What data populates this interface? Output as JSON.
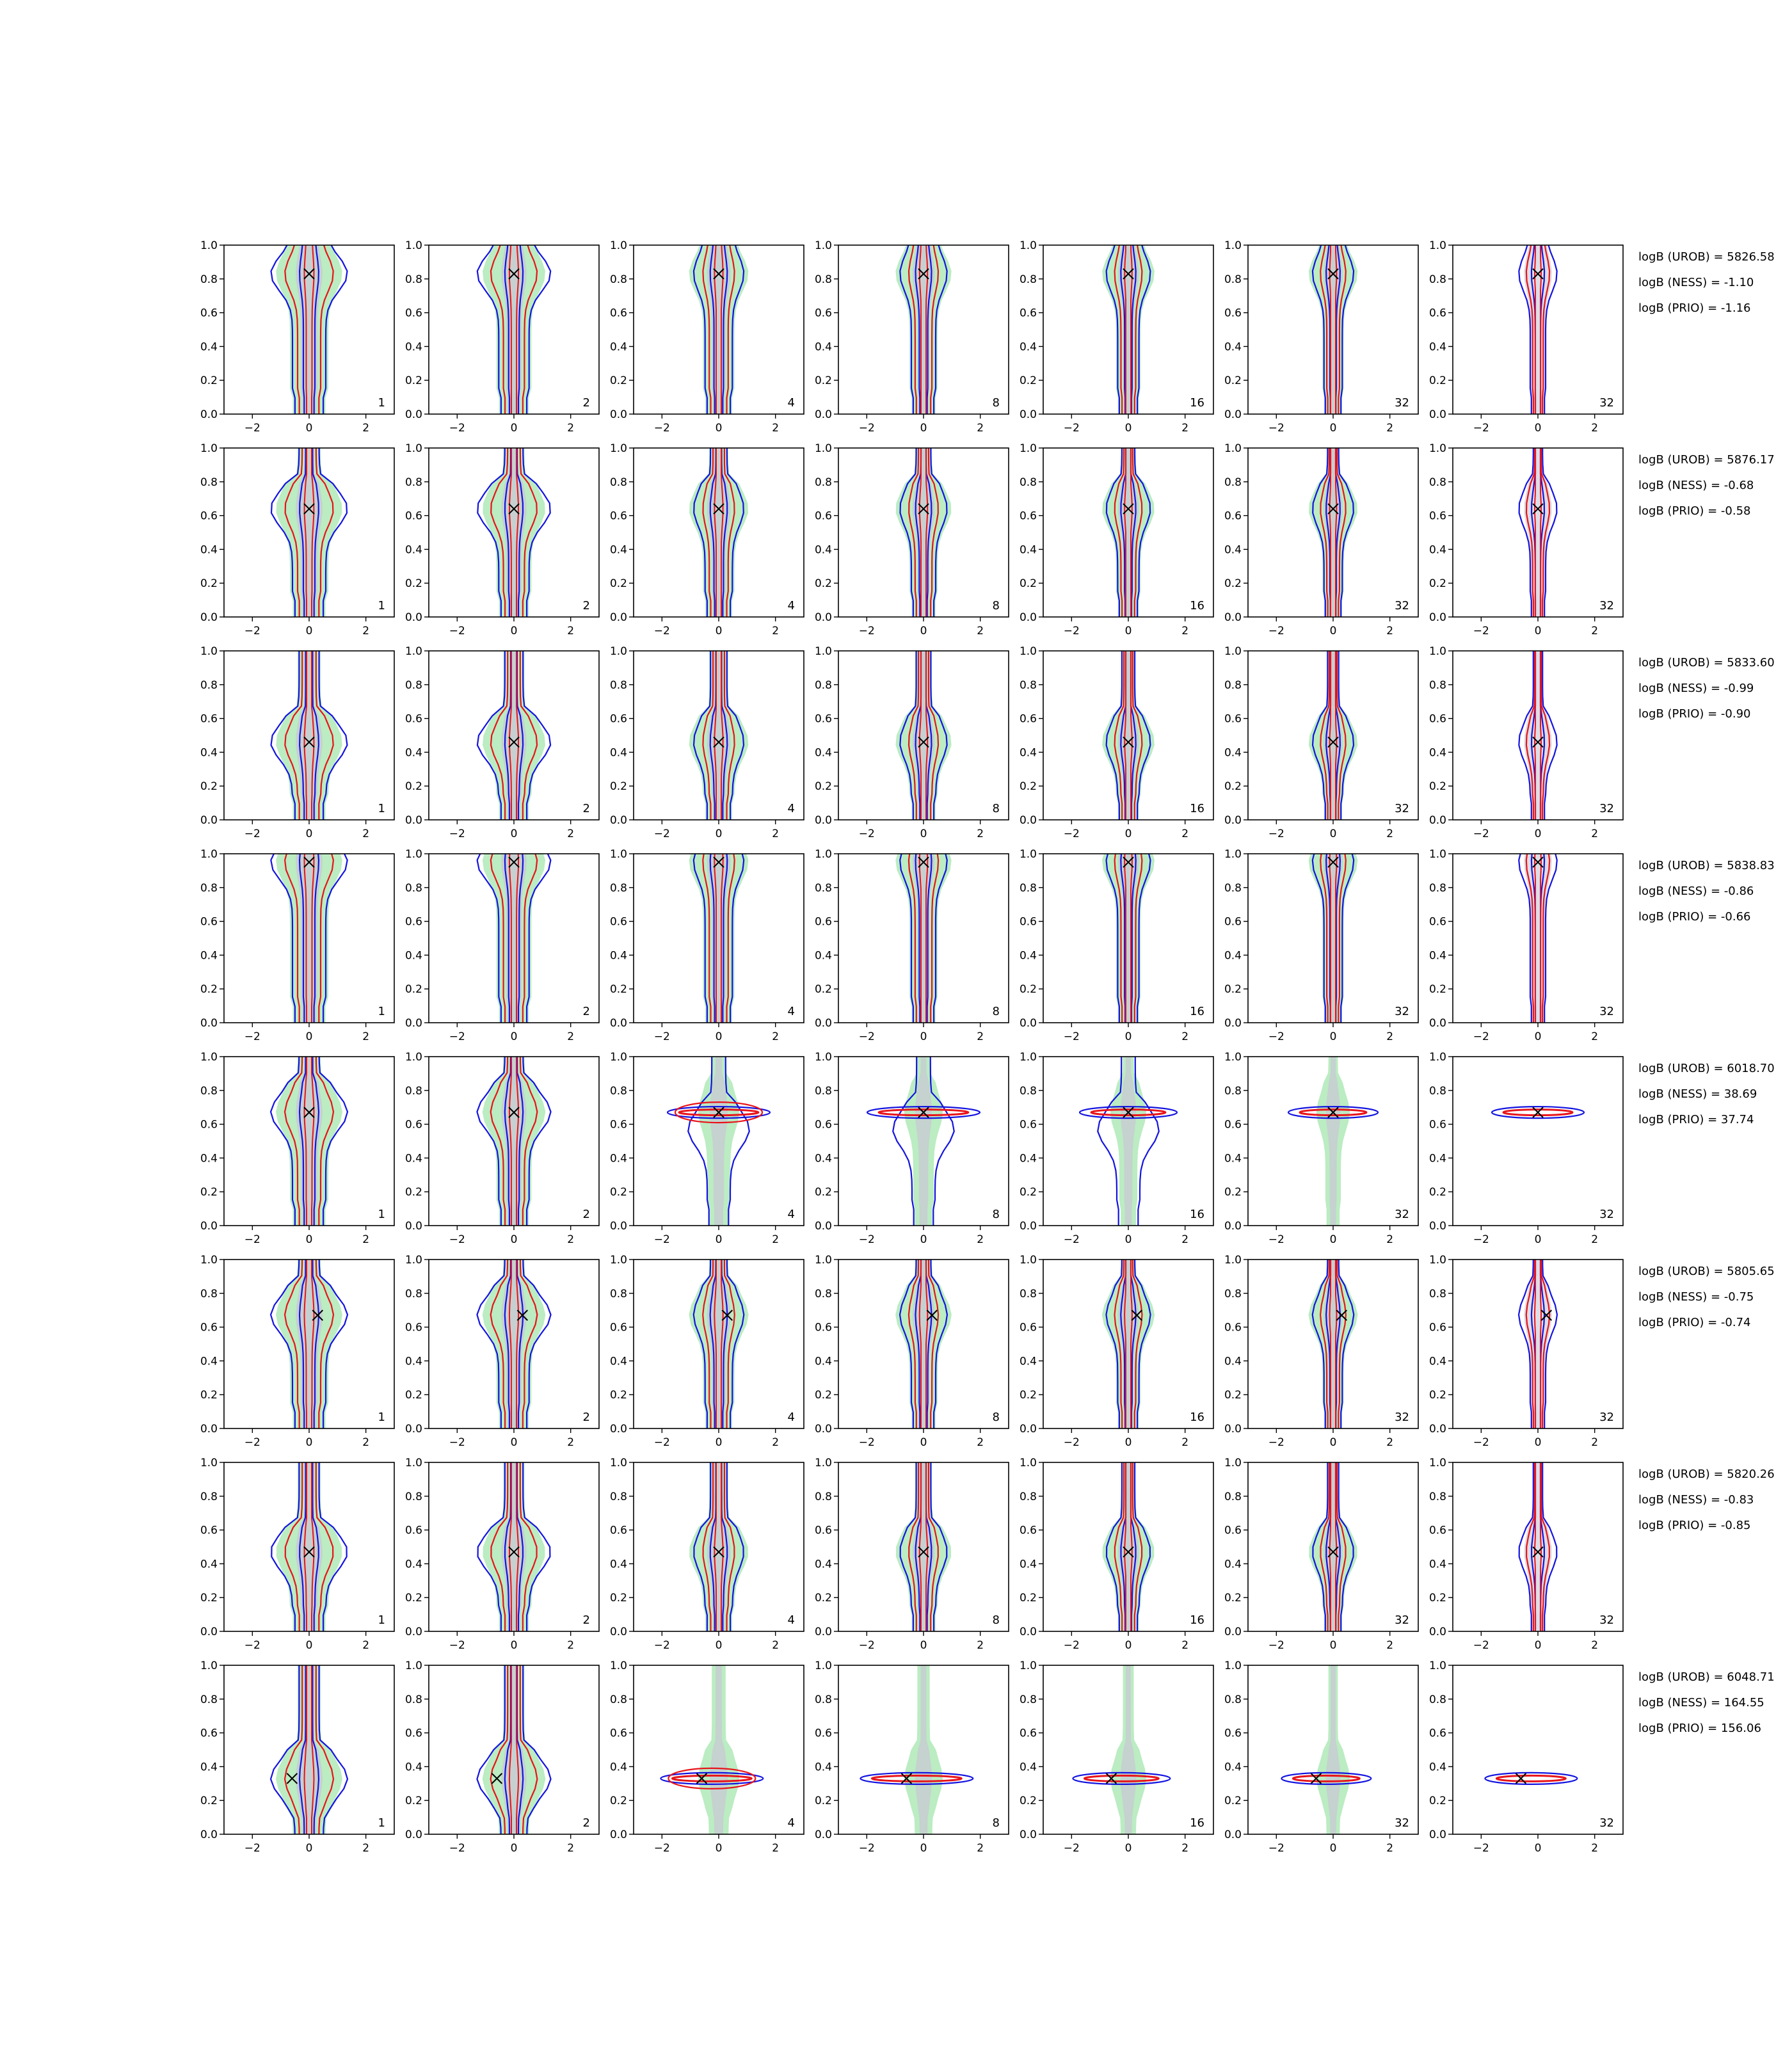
{
  "chart_data": {
    "type": "contour",
    "layout": {
      "rows": 8,
      "cols": 7
    },
    "xlim": [
      -3,
      3
    ],
    "ylim": [
      0,
      1
    ],
    "xticks": [
      "−2",
      "0",
      "2"
    ],
    "yticks": [
      "0.0",
      "0.2",
      "0.4",
      "0.6",
      "0.8",
      "1.0"
    ],
    "panel_labels": [
      "1",
      "2",
      "4",
      "8",
      "16",
      "32",
      "32"
    ],
    "colors": {
      "fill_green": "#b7ebbf",
      "fill_grey": "#c9c7d4",
      "contour_red": "#e8141b",
      "contour_blue": "#1414e0",
      "marker": "#000000"
    },
    "rows": [
      {
        "truth": [
          0.0,
          0.83
        ],
        "logB": [
          "logB (UROB) = 5826.58",
          "logB (NESS) = -1.10",
          "logB (PRIO) = -1.16"
        ]
      },
      {
        "truth": [
          0.0,
          0.64
        ],
        "logB": [
          "logB (UROB) = 5876.17",
          "logB (NESS) = -0.68",
          "logB (PRIO) = -0.58"
        ]
      },
      {
        "truth": [
          0.0,
          0.46
        ],
        "logB": [
          "logB (UROB) = 5833.60",
          "logB (NESS) = -0.99",
          "logB (PRIO) = -0.90"
        ]
      },
      {
        "truth": [
          0.0,
          0.95
        ],
        "logB": [
          "logB (UROB) = 5838.83",
          "logB (NESS) = -0.86",
          "logB (PRIO) = -0.66"
        ]
      },
      {
        "truth": [
          0.0,
          0.67
        ],
        "logB": [
          "logB (UROB) = 6018.70",
          "logB (NESS) = 38.69",
          "logB (PRIO) = 37.74"
        ]
      },
      {
        "truth": [
          0.3,
          0.67
        ],
        "logB": [
          "logB (UROB) = 5805.65",
          "logB (NESS) = -0.75",
          "logB (PRIO) = -0.74"
        ]
      },
      {
        "truth": [
          0.0,
          0.47
        ],
        "logB": [
          "logB (UROB) = 5820.26",
          "logB (NESS) = -0.83",
          "logB (PRIO) = -0.85"
        ]
      },
      {
        "truth": [
          -0.6,
          0.33
        ],
        "logB": [
          "logB (UROB) = 6048.71",
          "logB (NESS) = 164.55",
          "logB (PRIO) = 156.06"
        ]
      }
    ]
  }
}
